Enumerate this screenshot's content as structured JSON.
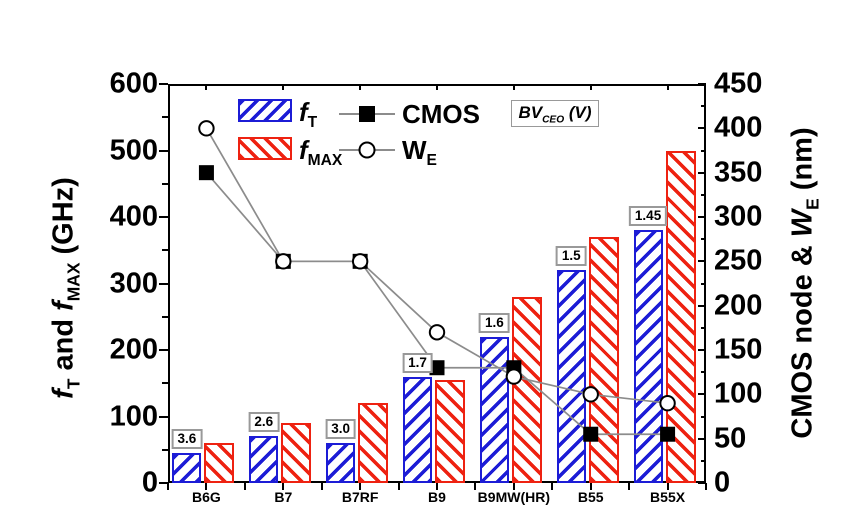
{
  "figure": {
    "legend": {
      "ft_symbol": "f",
      "ft_sub": "T",
      "fmax_symbol": "f",
      "fmax_sub": "MAX",
      "cmos_label": "CMOS",
      "we_symbol": "W",
      "we_sub": "E",
      "bv_prefix": "BV",
      "bv_sub": "CEO",
      "bv_unit": " (V)"
    },
    "left_axis_title": {
      "f1": "f",
      "sub1": "T",
      "mid": " and ",
      "f2": "f",
      "sub2": "MAX",
      "unit": " (GHz)"
    },
    "right_axis_title": {
      "prefix": "CMOS node & ",
      "sym": "W",
      "sub": "E",
      "unit": " (nm)"
    }
  },
  "chart_data": {
    "type": "bar",
    "title": "",
    "categories": [
      "B6G",
      "B7",
      "B7RF",
      "B9",
      "B9MW(HR)",
      "B55",
      "B55X"
    ],
    "series": [
      {
        "name": "fT",
        "role": "bar",
        "axis": "left",
        "unit": "GHz",
        "color": "#1c1cd6",
        "hatch": "/",
        "values": [
          45,
          70,
          60,
          160,
          220,
          320,
          380
        ]
      },
      {
        "name": "fMAX",
        "role": "bar",
        "axis": "left",
        "unit": "GHz",
        "color": "#ee2211",
        "hatch": "\\",
        "values": [
          60,
          90,
          120,
          155,
          280,
          370,
          500
        ]
      },
      {
        "name": "CMOS",
        "role": "line",
        "axis": "right",
        "unit": "nm",
        "marker": "filled-square",
        "marker_color": "#000000",
        "line_color": "#8c8c8c",
        "values": [
          350,
          250,
          250,
          130,
          130,
          55,
          55
        ]
      },
      {
        "name": "WE",
        "role": "line",
        "axis": "right",
        "unit": "nm",
        "marker": "open-circle",
        "marker_color": "#000000",
        "line_color": "#8c8c8c",
        "values": [
          400,
          250,
          250,
          170,
          120,
          100,
          90
        ]
      }
    ],
    "bar_annotations": {
      "label": "BV_CEO (V)",
      "values": [
        "3.6",
        "2.6",
        "3.0",
        "1.7",
        "1.6",
        "1.5",
        "1.45"
      ]
    },
    "left_axis": {
      "label": "fT and fMAX (GHz)",
      "min": 0,
      "max": 600,
      "major_tick": 100,
      "minor_tick": 50,
      "tick_labels": [
        "0",
        "100",
        "200",
        "300",
        "400",
        "500",
        "600"
      ]
    },
    "right_axis": {
      "label": "CMOS node & WE (nm)",
      "min": 0,
      "max": 450,
      "major_tick": 50,
      "minor_tick": 25,
      "tick_labels": [
        "0",
        "50",
        "100",
        "150",
        "200",
        "250",
        "300",
        "350",
        "400",
        "450"
      ]
    },
    "grid": false,
    "legend_position": "top-inside"
  }
}
